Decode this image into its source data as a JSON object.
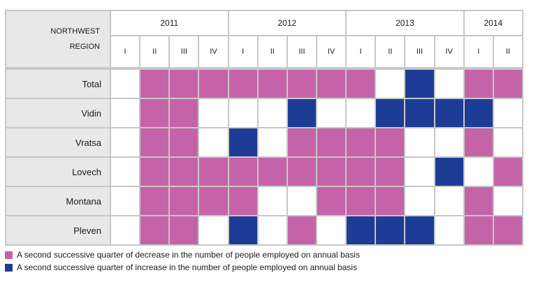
{
  "header": {
    "region_line1": "NORTHWEST",
    "region_line2": "REGION"
  },
  "chart_data": {
    "type": "heatmap",
    "years": [
      {
        "label": "2011",
        "span": 4
      },
      {
        "label": "2012",
        "span": 4
      },
      {
        "label": "2013",
        "span": 4
      },
      {
        "label": "2014",
        "span": 2
      }
    ],
    "quarters": [
      "I",
      "II",
      "III",
      "IV",
      "I",
      "II",
      "III",
      "IV",
      "I",
      "II",
      "III",
      "IV",
      "I",
      "II"
    ],
    "rows": [
      {
        "name": "Total",
        "values": [
          "N",
          "D",
          "D",
          "D",
          "D",
          "D",
          "D",
          "D",
          "D",
          "N",
          "I",
          "N",
          "D",
          "D"
        ]
      },
      {
        "name": "Vidin",
        "values": [
          "N",
          "D",
          "D",
          "N",
          "N",
          "N",
          "I",
          "N",
          "N",
          "I",
          "I",
          "I",
          "I",
          "N"
        ]
      },
      {
        "name": "Vratsa",
        "values": [
          "N",
          "D",
          "D",
          "N",
          "I",
          "N",
          "D",
          "D",
          "D",
          "D",
          "N",
          "N",
          "D",
          "N"
        ]
      },
      {
        "name": "Lovech",
        "values": [
          "N",
          "D",
          "D",
          "D",
          "D",
          "D",
          "D",
          "D",
          "D",
          "D",
          "N",
          "I",
          "N",
          "D"
        ]
      },
      {
        "name": "Montana",
        "values": [
          "N",
          "D",
          "D",
          "D",
          "D",
          "N",
          "N",
          "D",
          "D",
          "D",
          "N",
          "N",
          "D",
          "N"
        ]
      },
      {
        "name": "Pleven",
        "values": [
          "N",
          "D",
          "D",
          "N",
          "I",
          "N",
          "D",
          "N",
          "I",
          "I",
          "I",
          "N",
          "D",
          "D"
        ]
      }
    ],
    "codes": {
      "D": "decrease",
      "I": "increase",
      "N": "none"
    },
    "colors": {
      "D": "#c563a9",
      "I": "#1d3c95",
      "N": "#ffffff"
    },
    "legend": [
      {
        "code": "D",
        "label": "A second successive quarter of decrease in the number of people employed on annual basis"
      },
      {
        "code": "I",
        "label": "A second successive quarter of increase in the number of people employed on annual basis"
      }
    ]
  }
}
